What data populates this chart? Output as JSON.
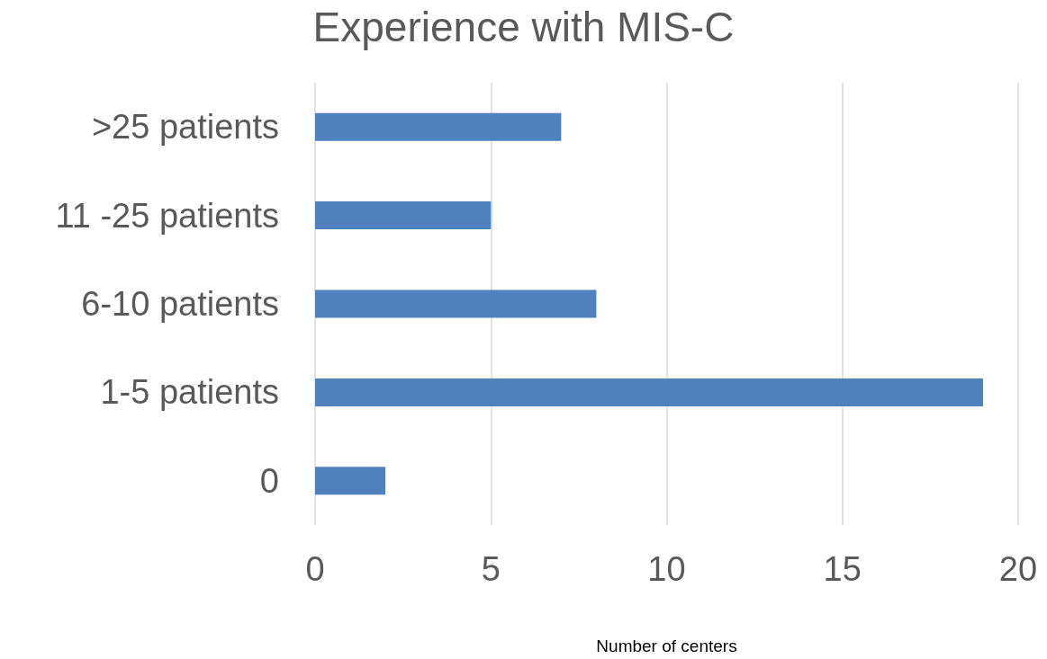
{
  "chart_data": {
    "type": "bar",
    "orientation": "horizontal",
    "title": "Experience with MIS-C",
    "xlabel": "Number of centers",
    "categories": [
      ">25 patients",
      "11 -25 patients",
      "6-10 patients",
      "1-5 patients",
      "0"
    ],
    "values": [
      7,
      5,
      8,
      19,
      2
    ],
    "color": "#4f81bd",
    "xlim": [
      0,
      20
    ],
    "xticks": [
      0,
      5,
      10,
      15,
      20
    ],
    "grid": "x"
  }
}
